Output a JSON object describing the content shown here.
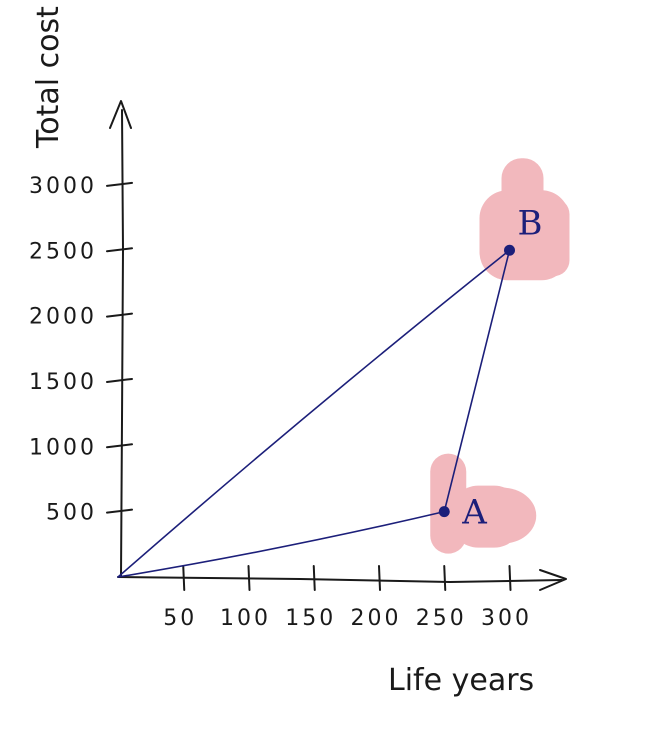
{
  "chart_data": {
    "type": "line",
    "xlabel": "Life years",
    "ylabel": "Total cost",
    "xlim": [
      0,
      340
    ],
    "ylim": [
      0,
      3300
    ],
    "x_ticks": [
      50,
      100,
      150,
      200,
      250,
      300
    ],
    "x_tick_labels": [
      "50",
      "100",
      "150",
      "200",
      "250",
      "300"
    ],
    "y_ticks": [
      500,
      1000,
      1500,
      2000,
      2500,
      3000
    ],
    "y_tick_labels": [
      "500",
      "1000",
      "1500",
      "2000",
      "2500",
      "3000"
    ],
    "grid": false,
    "line_color": "#1c1f7a",
    "highlight_color": "#f2b8bd",
    "points": [
      {
        "label": "A",
        "x": 250,
        "y": 500
      },
      {
        "label": "B",
        "x": 300,
        "y": 2500
      }
    ],
    "segments": [
      {
        "from": [
          0,
          0
        ],
        "to": [
          250,
          500
        ]
      },
      {
        "from": [
          0,
          0
        ],
        "to": [
          300,
          2500
        ]
      },
      {
        "from": [
          250,
          500
        ],
        "to": [
          300,
          2500
        ]
      }
    ]
  }
}
